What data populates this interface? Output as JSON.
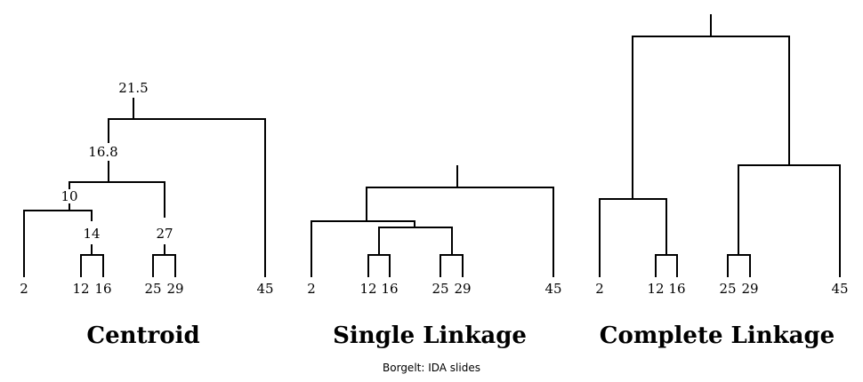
{
  "footer": {
    "credit": "Borgelt: IDA slides"
  },
  "dendrograms": [
    {
      "title": "Centroid",
      "leaves": [
        "2",
        "12",
        "16",
        "25",
        "29",
        "45"
      ],
      "merge_labels": [
        "14",
        "27",
        "10",
        "16.8",
        "21.5"
      ]
    },
    {
      "title": "Single Linkage",
      "leaves": [
        "2",
        "12",
        "16",
        "25",
        "29",
        "45"
      ]
    },
    {
      "title": "Complete Linkage",
      "leaves": [
        "2",
        "12",
        "16",
        "25",
        "29",
        "45"
      ]
    }
  ]
}
